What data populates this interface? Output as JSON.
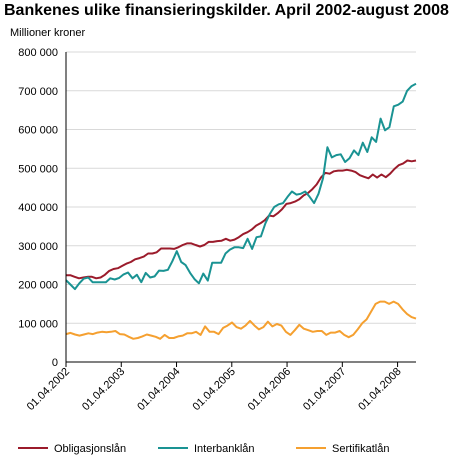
{
  "chart_data": {
    "type": "line",
    "title": "Bankenes ulike finansieringskilder. April 2002-august 2008",
    "ylabel": "Millioner kroner",
    "xlabel": "",
    "ylim": [
      0,
      800000
    ],
    "yticks": [
      0,
      100000,
      200000,
      300000,
      400000,
      500000,
      600000,
      700000,
      800000
    ],
    "ytick_labels": [
      "0",
      "100 000",
      "200 000",
      "300 000",
      "400 000",
      "500 000",
      "600 000",
      "700 000",
      "800 000"
    ],
    "x_start": "2002-04",
    "x_end": "2008-08",
    "xtick_labels": [
      "01.04.2002",
      "01.04.2003",
      "01.04.2004",
      "01.04.2005",
      "01.04.2006",
      "01.04.2007",
      "01.04.2008"
    ],
    "xtick_months": [
      "2002-04",
      "2003-04",
      "2004-04",
      "2005-04",
      "2006-04",
      "2007-04",
      "2008-04"
    ],
    "grid": true,
    "legend_position": "bottom",
    "series": [
      {
        "name": "Obligasjonslån",
        "color": "#9b1b2b",
        "values": [
          224000,
          224000,
          220000,
          216000,
          218000,
          220000,
          220000,
          216000,
          218000,
          225000,
          235000,
          240000,
          242000,
          248000,
          254000,
          258000,
          265000,
          268000,
          272000,
          280000,
          280000,
          283000,
          293000,
          293000,
          293000,
          292000,
          296000,
          302000,
          306000,
          306000,
          302000,
          298000,
          302000,
          310000,
          310000,
          312000,
          313000,
          318000,
          313000,
          316000,
          322000,
          330000,
          335000,
          342000,
          352000,
          358000,
          366000,
          378000,
          376000,
          384000,
          394000,
          408000,
          410000,
          414000,
          420000,
          430000,
          436000,
          446000,
          458000,
          476000,
          488000,
          486000,
          492000,
          494000,
          494000,
          496000,
          494000,
          490000,
          482000,
          478000,
          474000,
          484000,
          476000,
          484000,
          477000,
          486000,
          498000,
          508000,
          512000,
          520000,
          518000,
          520000
        ]
      },
      {
        "name": "Interbanklån",
        "color": "#1a9393",
        "values": [
          211000,
          200000,
          188000,
          203000,
          215000,
          218000,
          206000,
          206000,
          206000,
          206000,
          216000,
          213000,
          217000,
          226000,
          231000,
          216000,
          225000,
          206000,
          230000,
          218000,
          221000,
          236000,
          235000,
          238000,
          260000,
          286000,
          258000,
          250000,
          230000,
          214000,
          203000,
          228000,
          210000,
          256000,
          256000,
          256000,
          280000,
          290000,
          296000,
          296000,
          294000,
          318000,
          292000,
          322000,
          324000,
          358000,
          382000,
          400000,
          407000,
          410000,
          426000,
          440000,
          432000,
          434000,
          440000,
          426000,
          410000,
          434000,
          474000,
          554000,
          528000,
          534000,
          536000,
          516000,
          526000,
          546000,
          534000,
          566000,
          542000,
          580000,
          568000,
          628000,
          598000,
          606000,
          660000,
          664000,
          672000,
          700000,
          712000,
          718000
        ]
      },
      {
        "name": "Sertifikatlån",
        "color": "#f5a030",
        "values": [
          72000,
          75000,
          71000,
          68000,
          71000,
          74000,
          72000,
          76000,
          78000,
          77000,
          78000,
          80000,
          72000,
          71000,
          65000,
          60000,
          62000,
          66000,
          71000,
          68000,
          65000,
          60000,
          70000,
          62000,
          62000,
          66000,
          68000,
          74000,
          74000,
          78000,
          70000,
          92000,
          78000,
          78000,
          72000,
          88000,
          94000,
          102000,
          90000,
          86000,
          94000,
          106000,
          94000,
          84000,
          90000,
          104000,
          92000,
          98000,
          94000,
          78000,
          70000,
          82000,
          96000,
          86000,
          82000,
          78000,
          80000,
          80000,
          70000,
          76000,
          76000,
          80000,
          70000,
          64000,
          70000,
          84000,
          100000,
          110000,
          130000,
          150000,
          156000,
          156000,
          150000,
          156000,
          150000,
          136000,
          124000,
          116000,
          112000
        ]
      }
    ]
  }
}
